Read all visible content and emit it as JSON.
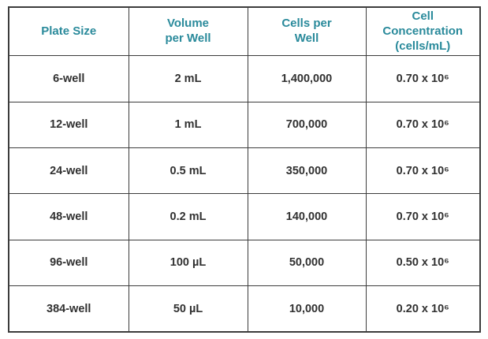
{
  "table": {
    "accent_color": "#2a8a9b",
    "border_color": "#3c3c3c",
    "headers": [
      "Plate Size",
      "Volume\nper Well",
      "Cells per\nWell",
      "Cell\nConcentration\n(cells/mL)"
    ],
    "rows": [
      [
        "6-well",
        "2 mL",
        "1,400,000",
        "0.70 x 10⁶"
      ],
      [
        "12-well",
        "1 mL",
        "700,000",
        "0.70 x 10⁶"
      ],
      [
        "24-well",
        "0.5 mL",
        "350,000",
        "0.70 x 10⁶"
      ],
      [
        "48-well",
        "0.2 mL",
        "140,000",
        "0.70 x 10⁶"
      ],
      [
        "96-well",
        "100 µL",
        "50,000",
        "0.50 x 10⁶"
      ],
      [
        "384-well",
        "50 µL",
        "10,000",
        "0.20 x 10⁶"
      ]
    ]
  }
}
